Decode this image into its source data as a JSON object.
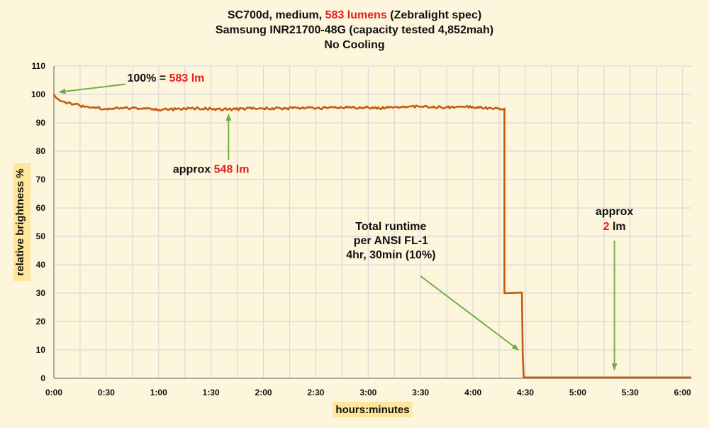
{
  "chart_data": {
    "type": "line",
    "title_lines": [
      {
        "parts": [
          {
            "text": "SC700d, medium, ",
            "color": "#111111"
          },
          {
            "text": "583 lumens",
            "color": "#e0201b"
          },
          {
            "text": " (Zebralight spec)",
            "color": "#111111"
          }
        ]
      },
      {
        "parts": [
          {
            "text": "Samsung INR21700-48G (capacity tested 4,852mah)",
            "color": "#111111"
          }
        ]
      },
      {
        "parts": [
          {
            "text": "No Cooling",
            "color": "#111111"
          }
        ]
      }
    ],
    "xlabel": "hours:minutes",
    "ylabel": "relative brightness  %",
    "xlim": [
      0,
      365
    ],
    "ylim": [
      0,
      110
    ],
    "x_ticks": [
      {
        "value": 0,
        "label": "0:00"
      },
      {
        "value": 30,
        "label": "0:30"
      },
      {
        "value": 60,
        "label": "1:00"
      },
      {
        "value": 90,
        "label": "1:30"
      },
      {
        "value": 120,
        "label": "2:00"
      },
      {
        "value": 150,
        "label": "2:30"
      },
      {
        "value": 180,
        "label": "3:00"
      },
      {
        "value": 210,
        "label": "3:30"
      },
      {
        "value": 240,
        "label": "4:00"
      },
      {
        "value": 270,
        "label": "4:30"
      },
      {
        "value": 300,
        "label": "5:00"
      },
      {
        "value": 330,
        "label": "5:30"
      },
      {
        "value": 360,
        "label": "6:00"
      }
    ],
    "y_ticks": [
      0,
      10,
      20,
      30,
      40,
      50,
      60,
      70,
      80,
      90,
      100,
      110
    ],
    "grid": true,
    "x_minor_grid": true,
    "colors": {
      "line": "#c55a11",
      "grid": "#d9d9d9",
      "arrow": "#70ad47",
      "accent": "#e0201b",
      "axis_title_bg": "#ffe699",
      "background": "#fdf5dc"
    },
    "series": [
      {
        "x": [
          0,
          1,
          2,
          3,
          5,
          8,
          12,
          15,
          20,
          25,
          30,
          40,
          50,
          60,
          65,
          70,
          80,
          90,
          100,
          110,
          120,
          130,
          140,
          150,
          160,
          170,
          180,
          190,
          200,
          210,
          220,
          230,
          240,
          245,
          258,
          258,
          259,
          268,
          268.5,
          269,
          280,
          300,
          320,
          340,
          360,
          365
        ],
        "y": [
          100,
          99,
          98.5,
          98,
          97.5,
          97,
          96.5,
          96,
          95.5,
          95.2,
          95,
          95.2,
          95,
          94.6,
          94.6,
          94.8,
          95,
          95,
          94.7,
          95,
          95,
          95,
          95.3,
          95,
          95.4,
          95.3,
          95.4,
          95.2,
          95.8,
          95.6,
          95.5,
          95.5,
          95.6,
          95.3,
          95,
          30,
          30,
          30.2,
          8,
          0.3,
          0.3,
          0.3,
          0.3,
          0.3,
          0.3,
          0.3
        ]
      }
    ],
    "annotations": [
      {
        "parts": [
          {
            "text": "100% = ",
            "color": "#111111"
          },
          {
            "text": "583 lm",
            "color": "#e0201b"
          }
        ],
        "x": 42,
        "y": 104.5,
        "anchor": "start",
        "arrow": {
          "from": [
            41,
            103.6
          ],
          "to": [
            3,
            100.8
          ]
        }
      },
      {
        "parts": [
          {
            "text": "approx ",
            "color": "#111111"
          },
          {
            "text": "548 lm",
            "color": "#e0201b"
          }
        ],
        "x": 90,
        "y": 72.4,
        "anchor": "middle",
        "arrow": {
          "from": [
            100,
            77
          ],
          "to": [
            100,
            93
          ]
        }
      },
      {
        "parts": [
          {
            "text": "Total runtime",
            "color": "#111111"
          }
        ],
        "x": 193,
        "y": 52.3,
        "anchor": "middle"
      },
      {
        "parts": [
          {
            "text": "per ANSI FL-1",
            "color": "#111111"
          }
        ],
        "x": 193,
        "y": 47.3,
        "anchor": "middle"
      },
      {
        "parts": [
          {
            "text": "4hr, 30min (10%)",
            "color": "#111111"
          }
        ],
        "x": 193,
        "y": 42.2,
        "anchor": "middle",
        "arrow": {
          "from": [
            210,
            36
          ],
          "to": [
            266,
            10
          ]
        }
      },
      {
        "parts": [
          {
            "text": "approx",
            "color": "#111111"
          }
        ],
        "x": 321,
        "y": 57.5,
        "anchor": "middle"
      },
      {
        "parts": [
          {
            "text": "2",
            "color": "#e0201b"
          },
          {
            "text": " lm",
            "color": "#111111"
          }
        ],
        "x": 321,
        "y": 52.3,
        "anchor": "middle",
        "arrow": {
          "from": [
            321,
            48.5
          ],
          "to": [
            321,
            3
          ]
        }
      }
    ]
  }
}
